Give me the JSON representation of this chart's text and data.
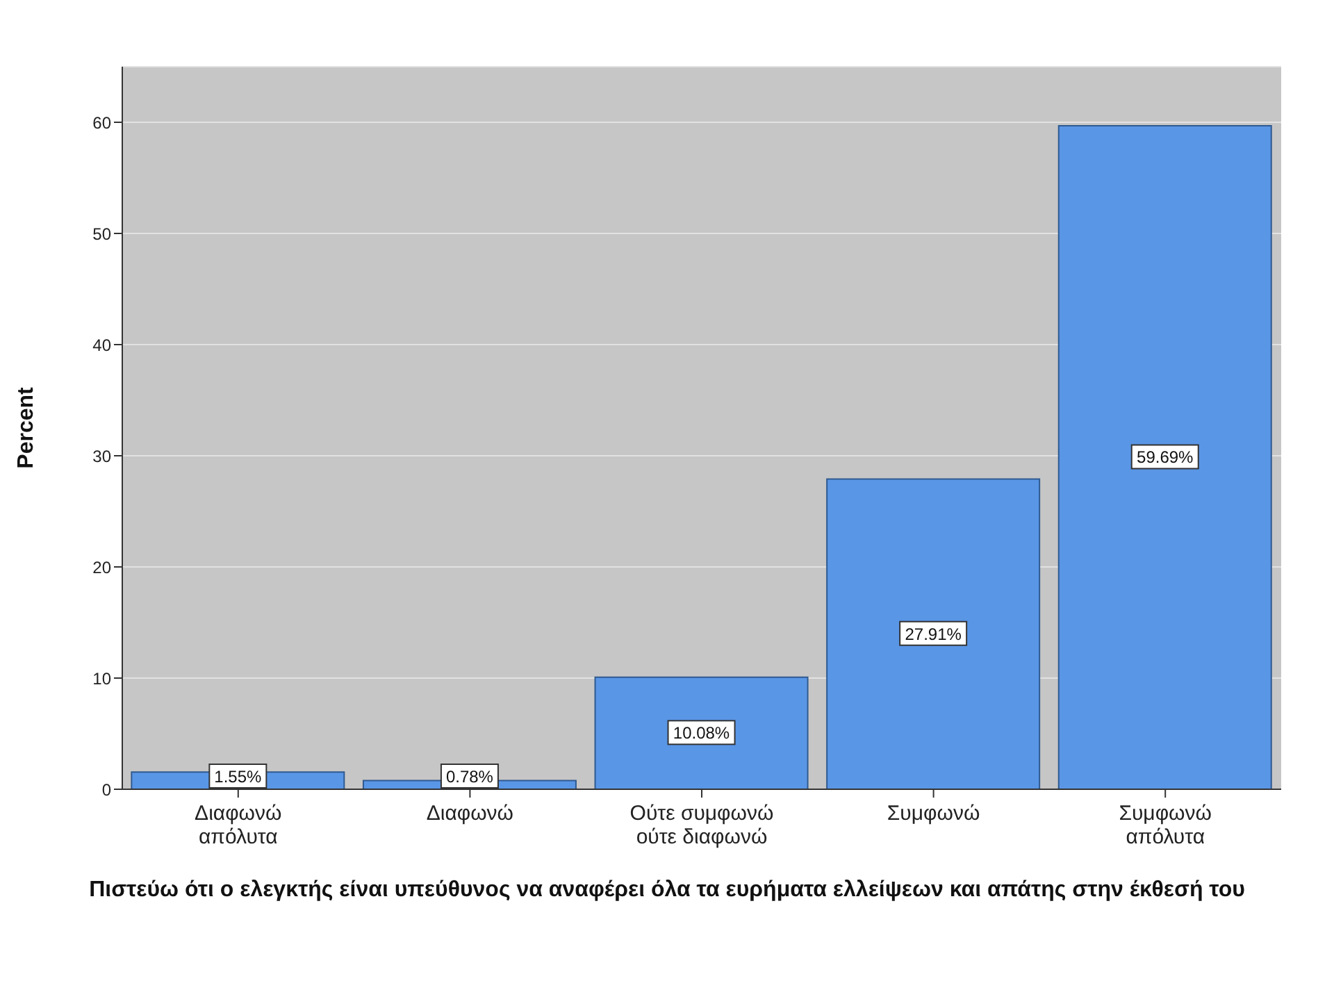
{
  "chart_data": {
    "type": "bar",
    "categories": [
      "Διαφωνώ απόλυτα",
      "Διαφωνώ",
      "Ούτε συμφωνώ ούτε διαφωνώ",
      "Συμφωνώ",
      "Συμφωνώ απόλυτα"
    ],
    "values": [
      1.55,
      0.78,
      10.08,
      27.91,
      59.69
    ],
    "value_labels": [
      "1.55%",
      "0.78%",
      "10.08%",
      "27.91%",
      "59.69%"
    ],
    "color": "#5a96e6",
    "ylabel": "Percent",
    "xlabel": "Πιστεύω ότι ο ελεγκτής είναι υπεύθυνος να αναφέρει όλα τα ευρήματα ελλείψεων και απάτης στην έκθεσή του",
    "ylim": [
      0,
      65
    ],
    "yticks": [
      0,
      10,
      20,
      30,
      40,
      50,
      60
    ],
    "grid": "y"
  }
}
